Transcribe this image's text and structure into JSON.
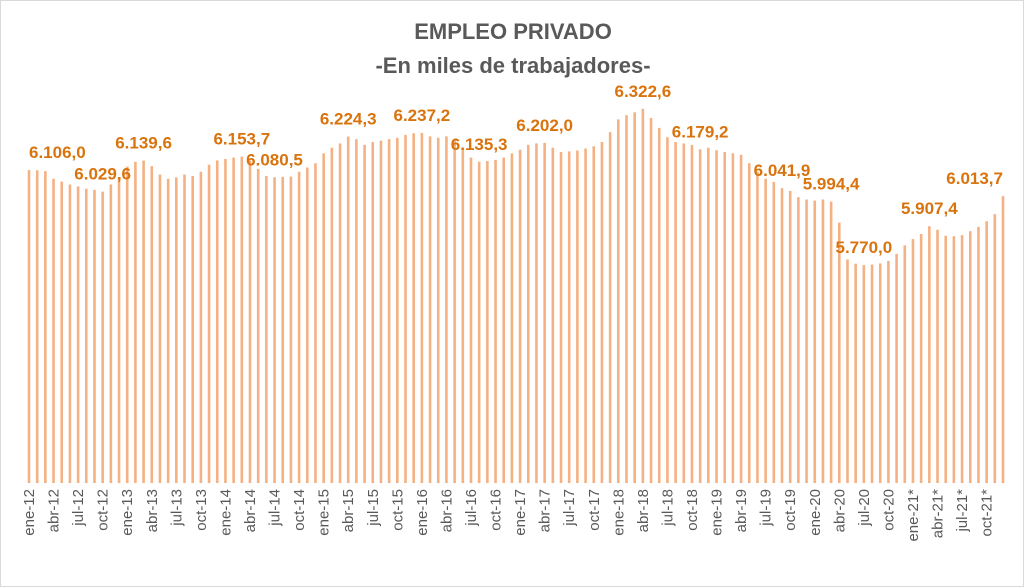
{
  "chart_data": {
    "type": "bar",
    "title": "EMPLEO PRIVADO",
    "subtitle": "-En miles de trabajadores-",
    "xlabel": "",
    "ylabel": "",
    "ylim": [
      5000,
      6350
    ],
    "grid": false,
    "legend": "none",
    "bar_color": "#f4b183",
    "label_color": "#d9730d",
    "title_color": "#595959",
    "categories": [
      "ene-12",
      "feb-12",
      "mar-12",
      "abr-12",
      "may-12",
      "jun-12",
      "jul-12",
      "ago-12",
      "sep-12",
      "oct-12",
      "nov-12",
      "dic-12",
      "ene-13",
      "feb-13",
      "mar-13",
      "abr-13",
      "may-13",
      "jun-13",
      "jul-13",
      "ago-13",
      "sep-13",
      "oct-13",
      "nov-13",
      "dic-13",
      "ene-14",
      "feb-14",
      "mar-14",
      "abr-14",
      "may-14",
      "jun-14",
      "jul-14",
      "ago-14",
      "sep-14",
      "oct-14",
      "nov-14",
      "dic-14",
      "ene-15",
      "feb-15",
      "mar-15",
      "abr-15",
      "may-15",
      "jun-15",
      "jul-15",
      "ago-15",
      "sep-15",
      "oct-15",
      "nov-15",
      "dic-15",
      "ene-16",
      "feb-16",
      "mar-16",
      "abr-16",
      "may-16",
      "jun-16",
      "jul-16",
      "ago-16",
      "sep-16",
      "oct-16",
      "nov-16",
      "dic-16",
      "ene-17",
      "feb-17",
      "mar-17",
      "abr-17",
      "may-17",
      "jun-17",
      "jul-17",
      "ago-17",
      "sep-17",
      "oct-17",
      "nov-17",
      "dic-17",
      "ene-18",
      "feb-18",
      "mar-18",
      "abr-18",
      "may-18",
      "jun-18",
      "jul-18",
      "ago-18",
      "sep-18",
      "oct-18",
      "nov-18",
      "dic-18",
      "ene-19",
      "feb-19",
      "mar-19",
      "abr-19",
      "may-19",
      "jun-19",
      "jul-19",
      "ago-19",
      "sep-19",
      "oct-19",
      "nov-19",
      "dic-19",
      "ene-20",
      "feb-20",
      "mar-20",
      "abr-20",
      "may-20",
      "jun-20",
      "jul-20",
      "ago-20",
      "sep-20",
      "oct-20",
      "nov-20",
      "dic-20",
      "ene-21*",
      "feb-21*",
      "mar-21*",
      "abr-21*",
      "may-21*",
      "jun-21*",
      "jul-21*",
      "ago-21*",
      "sep-21*",
      "oct-21*",
      "nov-21*",
      "dic-21*"
    ],
    "values": [
      6106.0,
      6105,
      6102,
      6075,
      6065,
      6055,
      6048,
      6040,
      6036,
      6029.6,
      6055,
      6080,
      6118,
      6135,
      6139.6,
      6120,
      6090,
      6075,
      6080,
      6090,
      6085,
      6100,
      6125,
      6140,
      6145,
      6150,
      6153.7,
      6140,
      6110,
      6085,
      6080.5,
      6082,
      6083,
      6100,
      6115,
      6130,
      6165,
      6185,
      6200,
      6224.3,
      6215,
      6195,
      6205,
      6210,
      6215,
      6220,
      6230,
      6236,
      6237.2,
      6225,
      6220,
      6225,
      6210,
      6185,
      6150,
      6135.3,
      6138,
      6142,
      6150,
      6165,
      6178,
      6195,
      6200,
      6202.0,
      6185,
      6170,
      6172,
      6175,
      6182,
      6190,
      6205,
      6240,
      6285,
      6300,
      6310,
      6322.6,
      6290,
      6255,
      6222,
      6205,
      6200,
      6195,
      6179.2,
      6185,
      6176,
      6170,
      6165,
      6160,
      6130,
      6100,
      6075,
      6064,
      6041.9,
      6032,
      6010,
      6002,
      5998,
      6002,
      5994.4,
      5920,
      5790,
      5775,
      5770.0,
      5772,
      5776,
      5785,
      5810,
      5840,
      5862,
      5880,
      5907.4,
      5895,
      5874,
      5872,
      5876,
      5890,
      5905,
      5925,
      5950,
      6013.7
    ],
    "tick_every": 3,
    "data_labels": [
      {
        "index": 0,
        "text": "6.106,0"
      },
      {
        "index": 9,
        "text": "6.029,6"
      },
      {
        "index": 14,
        "text": "6.139,6"
      },
      {
        "index": 26,
        "text": "6.153,7"
      },
      {
        "index": 30,
        "text": "6.080,5"
      },
      {
        "index": 39,
        "text": "6.224,3"
      },
      {
        "index": 48,
        "text": "6.237,2"
      },
      {
        "index": 55,
        "text": "6.135,3"
      },
      {
        "index": 63,
        "text": "6.202,0"
      },
      {
        "index": 75,
        "text": "6.322,6"
      },
      {
        "index": 82,
        "text": "6.179,2"
      },
      {
        "index": 92,
        "text": "6.041,9"
      },
      {
        "index": 98,
        "text": "5.994,4"
      },
      {
        "index": 102,
        "text": "5.770,0"
      },
      {
        "index": 110,
        "text": "5.907,4"
      },
      {
        "index": 119,
        "text": "6.013,7"
      }
    ]
  }
}
